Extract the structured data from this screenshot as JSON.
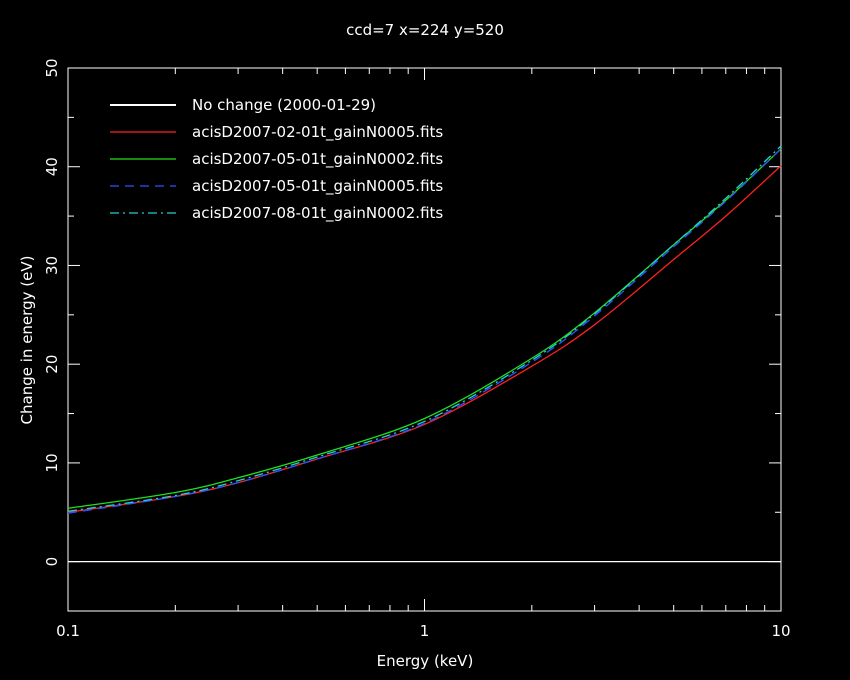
{
  "chart_data": {
    "type": "line",
    "title": "ccd=7 x=224 y=520",
    "xlabel": "Energy (keV)",
    "ylabel": "Change in energy (eV)",
    "xscale": "log",
    "xlim": [
      0.1,
      10
    ],
    "ylim": [
      -5,
      50
    ],
    "x_ticks": [
      0.1,
      1,
      10
    ],
    "x_tick_labels": [
      "0.1",
      "1",
      "10"
    ],
    "y_ticks": [
      0,
      10,
      20,
      30,
      40,
      50
    ],
    "y_tick_labels": [
      "0",
      "10",
      "20",
      "30",
      "40",
      "50"
    ],
    "grid": false,
    "legend_position": "top-left",
    "x": [
      0.1,
      0.2,
      0.3,
      0.5,
      1,
      2,
      3,
      5,
      7,
      10
    ],
    "series": [
      {
        "name": "No change (2000-01-29)",
        "color": "#ffffff",
        "dash": "solid",
        "values": [
          0,
          0,
          0,
          0,
          0,
          0,
          0,
          0,
          0,
          0
        ]
      },
      {
        "name": "acisD2007-02-01t_gainN0005.fits",
        "color": "#ff2020",
        "dash": "solid",
        "values": [
          5.0,
          6.6,
          8.0,
          10.4,
          13.9,
          19.8,
          24.0,
          30.6,
          35.0,
          40.1
        ]
      },
      {
        "name": "acisD2007-05-01t_gainN0002.fits",
        "color": "#20e020",
        "dash": "solid",
        "values": [
          5.4,
          7.0,
          8.5,
          10.8,
          14.5,
          20.6,
          25.2,
          32.1,
          36.6,
          41.8
        ]
      },
      {
        "name": "acisD2007-05-01t_gainN0005.fits",
        "color": "#3050ff",
        "dash": "dashed",
        "values": [
          4.9,
          6.6,
          8.0,
          10.4,
          14.0,
          20.2,
          24.9,
          31.9,
          36.5,
          41.8
        ]
      },
      {
        "name": "acisD2007-08-01t_gainN0002.fits",
        "color": "#20d0d0",
        "dash": "dashdot",
        "values": [
          5.1,
          6.7,
          8.2,
          10.6,
          14.2,
          20.4,
          25.1,
          32.1,
          36.8,
          42.1
        ]
      }
    ]
  }
}
